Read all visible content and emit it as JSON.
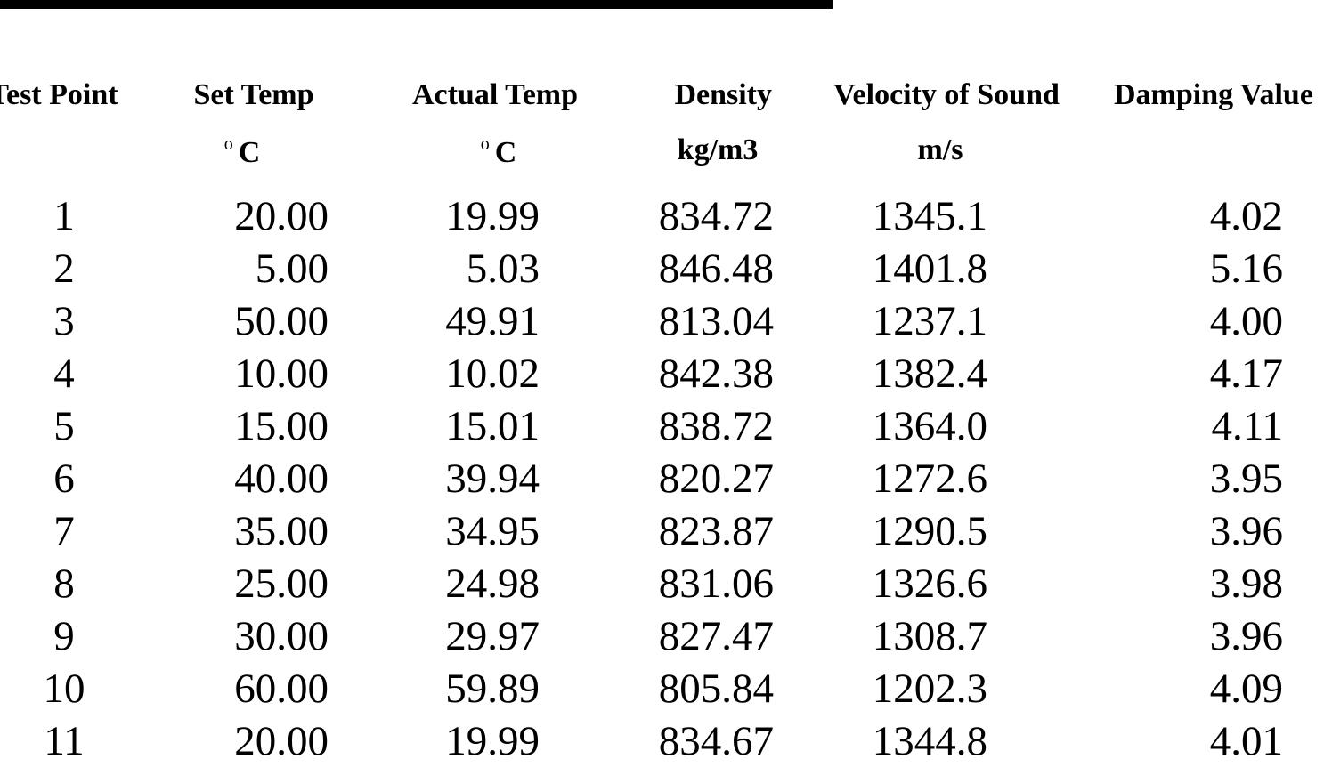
{
  "table": {
    "columns": [
      {
        "header": "Test Point"
      },
      {
        "header": "Set Temp",
        "unit_sup": "o",
        "unit": "C"
      },
      {
        "header": "Actual Temp",
        "unit_sup": "o",
        "unit": "C"
      },
      {
        "header": "Density",
        "unit": "kg/m3"
      },
      {
        "header": "Velocity of Sound",
        "unit": "m/s"
      },
      {
        "header": "Damping Value"
      }
    ],
    "rows": [
      [
        "1",
        "20.00",
        "19.99",
        "834.72",
        "1345.1",
        "4.02"
      ],
      [
        "2",
        "5.00",
        "5.03",
        "846.48",
        "1401.8",
        "5.16"
      ],
      [
        "3",
        "50.00",
        "49.91",
        "813.04",
        "1237.1",
        "4.00"
      ],
      [
        "4",
        "10.00",
        "10.02",
        "842.38",
        "1382.4",
        "4.17"
      ],
      [
        "5",
        "15.00",
        "15.01",
        "838.72",
        "1364.0",
        "4.11"
      ],
      [
        "6",
        "40.00",
        "39.94",
        "820.27",
        "1272.6",
        "3.95"
      ],
      [
        "7",
        "35.00",
        "34.95",
        "823.87",
        "1290.5",
        "3.96"
      ],
      [
        "8",
        "25.00",
        "24.98",
        "831.06",
        "1326.6",
        "3.98"
      ],
      [
        "9",
        "30.00",
        "29.97",
        "827.47",
        "1308.7",
        "3.96"
      ],
      [
        "10",
        "60.00",
        "59.89",
        "805.84",
        "1202.3",
        "4.09"
      ],
      [
        "11",
        "20.00",
        "19.99",
        "834.67",
        "1344.8",
        "4.01"
      ]
    ]
  }
}
